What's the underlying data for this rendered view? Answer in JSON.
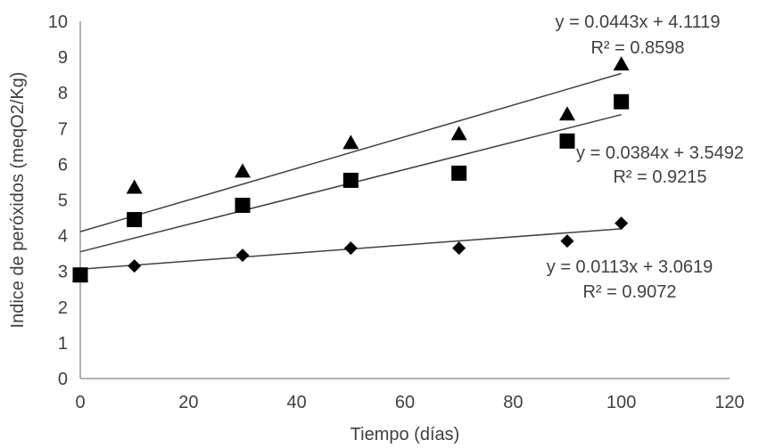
{
  "chart_data": {
    "type": "scatter",
    "xlabel": "Tiempo (días)",
    "ylabel": "Indice de peróxidos (meqO2/Kg)",
    "xlim": [
      0,
      120
    ],
    "ylim": [
      0,
      10
    ],
    "x_ticks": [
      "0",
      "20",
      "40",
      "60",
      "80",
      "100",
      "120"
    ],
    "y_ticks": [
      "0",
      "1",
      "2",
      "3",
      "4",
      "5",
      "6",
      "7",
      "8",
      "9",
      "10"
    ],
    "grid": false,
    "legend": "none",
    "series": [
      {
        "marker": "triangle",
        "x": [
          0,
          10,
          30,
          50,
          70,
          90,
          100
        ],
        "y": [
          2.9,
          5.35,
          5.8,
          6.6,
          6.85,
          7.4,
          8.8
        ],
        "trendline": {
          "slope": 0.0443,
          "intercept": 4.1119,
          "equation": "y = 0.0443x + 4.1119",
          "r2": "R² = 0.8598"
        }
      },
      {
        "marker": "square",
        "x": [
          0,
          10,
          30,
          50,
          70,
          90,
          100
        ],
        "y": [
          2.9,
          4.45,
          4.85,
          5.55,
          5.75,
          6.65,
          7.75
        ],
        "trendline": {
          "slope": 0.0384,
          "intercept": 3.5492,
          "equation": "y = 0.0384x + 3.5492",
          "r2": "R² = 0.9215"
        }
      },
      {
        "marker": "diamond",
        "x": [
          0,
          10,
          30,
          50,
          70,
          90,
          100
        ],
        "y": [
          2.9,
          3.15,
          3.45,
          3.65,
          3.65,
          3.85,
          4.35
        ],
        "trendline": {
          "slope": 0.0113,
          "intercept": 3.0619,
          "equation": "y = 0.0113x + 3.0619",
          "r2": "R² = 0.9072"
        }
      }
    ]
  }
}
